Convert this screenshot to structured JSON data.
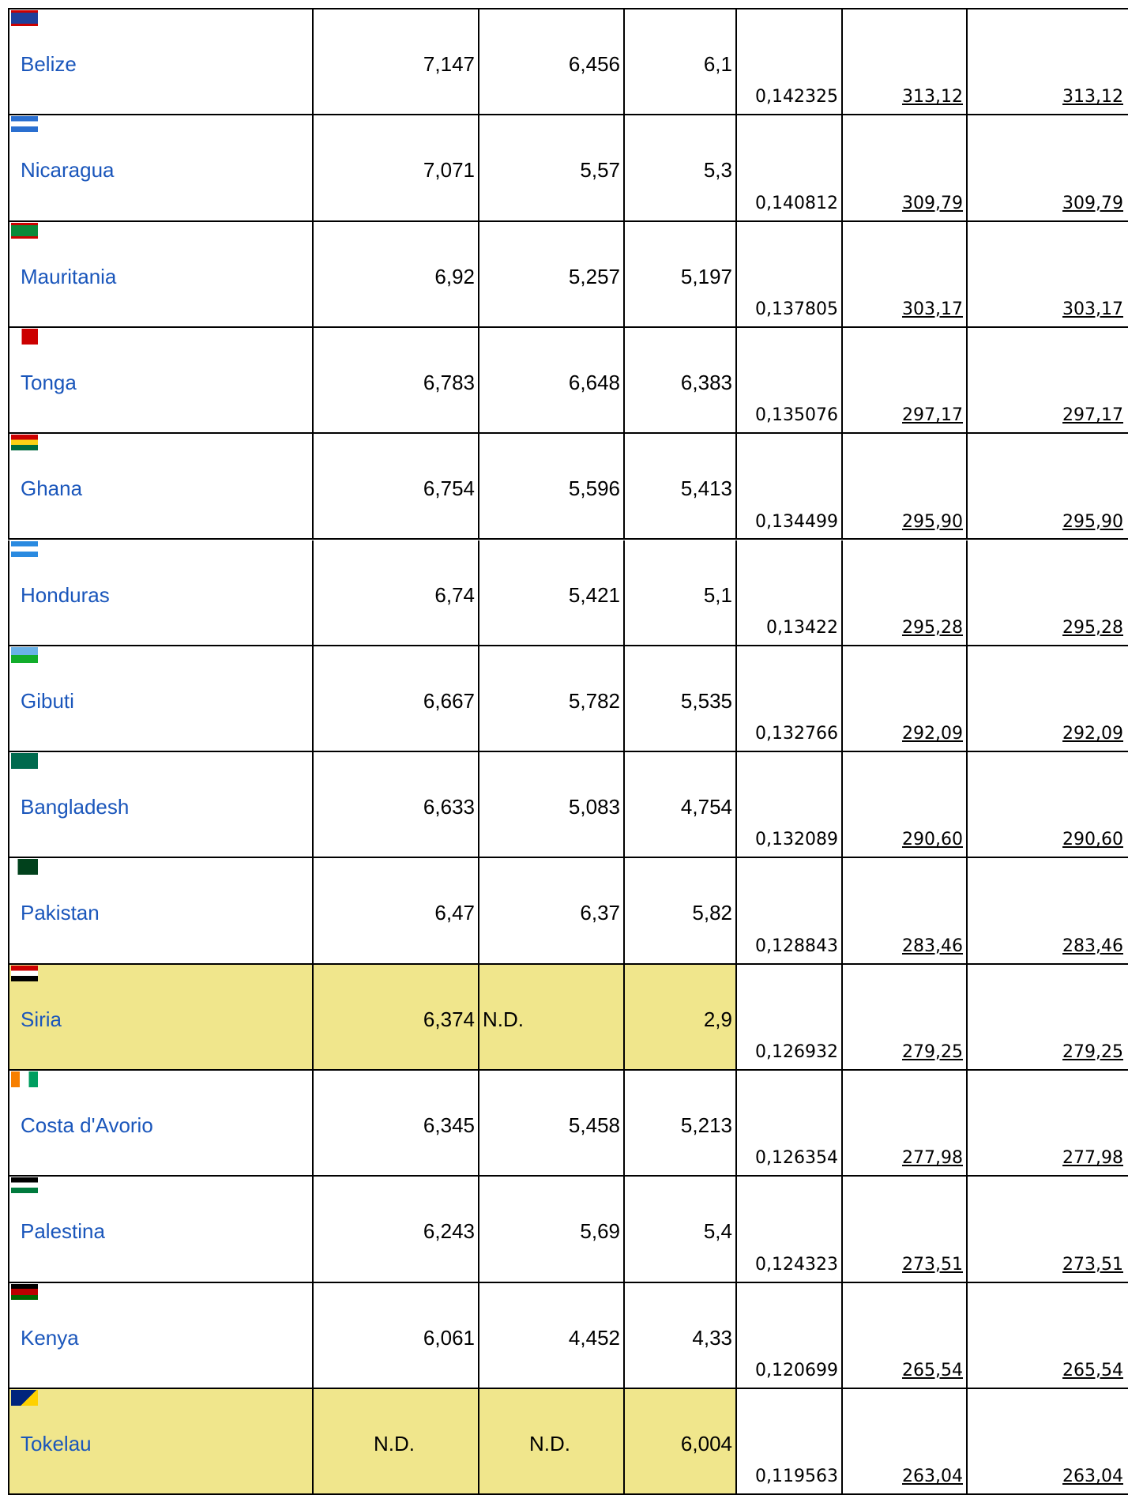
{
  "table": {
    "rows": [
      {
        "name": "Belize",
        "cells": [
          "7,147",
          "6,456",
          "6,1",
          "0,142325",
          "313,12",
          "313,12"
        ]
      },
      {
        "name": "Nicaragua",
        "cells": [
          "7,071",
          "5,57",
          "5,3",
          "0,140812",
          "309,79",
          "309,79"
        ]
      },
      {
        "name": "Mauritania",
        "cells": [
          "6,92",
          "5,257",
          "5,197",
          "0,137805",
          "303,17",
          "303,17"
        ]
      },
      {
        "name": "Tonga",
        "cells": [
          "6,783",
          "6,648",
          "6,383",
          "0,135076",
          "297,17",
          "297,17"
        ]
      },
      {
        "name": "Ghana",
        "cells": [
          "6,754",
          "5,596",
          "5,413",
          "0,134499",
          "295,90",
          "295,90"
        ]
      },
      {
        "name": "Honduras",
        "cells": [
          "6,74",
          "5,421",
          "5,1",
          "0,13422",
          "295,28",
          "295,28"
        ]
      },
      {
        "name": "Gibuti",
        "cells": [
          "6,667",
          "5,782",
          "5,535",
          "0,132766",
          "292,09",
          "292,09"
        ]
      },
      {
        "name": "Bangladesh",
        "cells": [
          "6,633",
          "5,083",
          "4,754",
          "0,132089",
          "290,60",
          "290,60"
        ]
      },
      {
        "name": "Pakistan",
        "cells": [
          "6,47",
          "6,37",
          "5,82",
          "0,128843",
          "283,46",
          "283,46"
        ]
      },
      {
        "name": "Siria",
        "cells": [
          "6,374",
          "N.D.",
          "2,9",
          "0,126932",
          "279,25",
          "279,25"
        ],
        "highlight": true
      },
      {
        "name": "Costa d'Avorio",
        "cells": [
          "6,345",
          "5,458",
          "5,213",
          "0,126354",
          "277,98",
          "277,98"
        ]
      },
      {
        "name": "Palestina",
        "cells": [
          "6,243",
          "5,69",
          "5,4",
          "0,124323",
          "273,51",
          "273,51"
        ]
      },
      {
        "name": "Kenya",
        "cells": [
          "6,061",
          "4,452",
          "4,33",
          "0,120699",
          "265,54",
          "265,54"
        ]
      },
      {
        "name": "Tokelau",
        "cells": [
          "N.D.",
          "N.D.",
          "6,004",
          "0,119563",
          "263,04",
          "263,04"
        ],
        "highlight": true
      }
    ]
  }
}
